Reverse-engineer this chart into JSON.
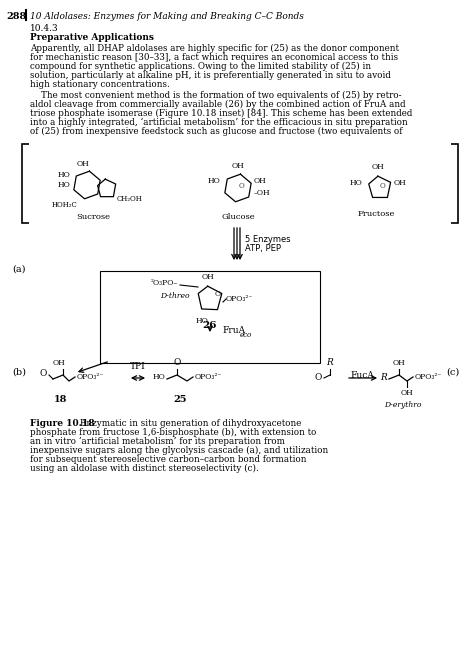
{
  "page_number": "288",
  "header_italic": "10 Aldolases: Enzymes for Making and Breaking C–C Bonds",
  "section_number": "10.4.3",
  "section_title": "Preparative Applications",
  "para1_lines": [
    "Apparently, all DHAP aldolases are highly specific for (25) as the donor component",
    "for mechanistic reason [30–33], a fact which requires an economical access to this",
    "compound for synthetic applications. Owing to the limited stability of (25) in",
    "solution, particularly at alkaline pH, it is preferentially generated in situ to avoid",
    "high stationary concentrations."
  ],
  "para2_lines": [
    "    The most convenient method is the formation of two equivalents of (25) by retro-",
    "aldol cleavage from commercially available (26) by the combined action of FruA and",
    "triose phosphate isomerase (Figure 10.18 inset) [84]. This scheme has been extended",
    "into a highly integrated, ‘artificial metabolism’ for the efficacious in situ preparation",
    "of (25) from inexpensive feedstock such as glucose and fructose (two equivalents of"
  ],
  "label_a": "(a)",
  "label_b": "(b)",
  "label_c": "(c)",
  "caption_bold": "Figure 10.18",
  "caption_rest": " Enzymatic in situ generation of dihydroxyacetone phosphate from fructose 1,6-bisphosphate (b), with extension to an in vitro ‘artificial metabolism’ for its preparation from inexpensive sugars along the glycolysis cascade (a), and utilization for subsequent stereoselective carbon–carbon bond formation using an aldolase with distinct stereoselectivity (c).",
  "background_color": "#ffffff"
}
